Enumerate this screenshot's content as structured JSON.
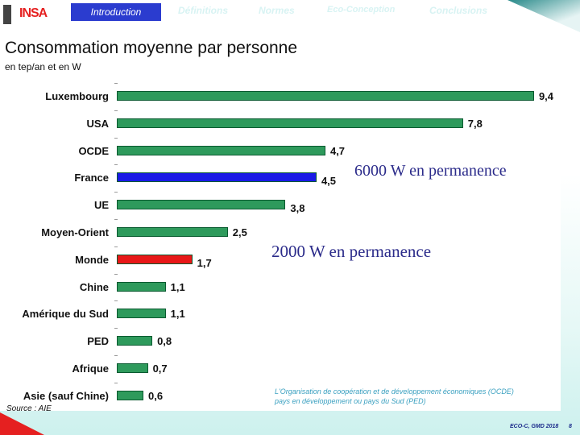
{
  "header": {
    "logo": "INSA",
    "nav": [
      "Introduction",
      "Définitions",
      "Normes",
      "Eco-Conception",
      "Conclusions"
    ]
  },
  "title": "Consommation moyenne par personne",
  "subtitle": "en tep/an et en W",
  "chart_data": {
    "type": "bar",
    "orientation": "horizontal",
    "title": "Consommation moyenne par personne",
    "unit": "tep/an",
    "categories": [
      "Luxembourg",
      "USA",
      "OCDE",
      "France",
      "UE",
      "Moyen-Orient",
      "Monde",
      "Chine",
      "Amérique du Sud",
      "PED",
      "Afrique",
      "Asie (sauf Chine)"
    ],
    "values": [
      9.4,
      7.8,
      4.7,
      4.5,
      3.8,
      2.5,
      1.7,
      1.1,
      1.1,
      0.8,
      0.7,
      0.6
    ],
    "labels": [
      "9,4",
      "7,8",
      "4,7",
      "4,5",
      "3,8",
      "2,5",
      "1,7",
      "1,1",
      "1,1",
      "0,8",
      "0,7",
      "0,6"
    ],
    "colors": {
      "default": "#2e9a5c",
      "France": "#1a1ae6",
      "Monde": "#e81818"
    },
    "annotations": [
      "6000 W en permanence",
      "2000 W en permanence"
    ]
  },
  "source": "Source : AIE",
  "notes": [
    "L'Organisation de coopération et de développement économiques (OCDE)",
    "pays en développement ou pays du Sud (PED)"
  ],
  "footer": {
    "text": "ECO-C, GMD 2018",
    "page": "8"
  }
}
